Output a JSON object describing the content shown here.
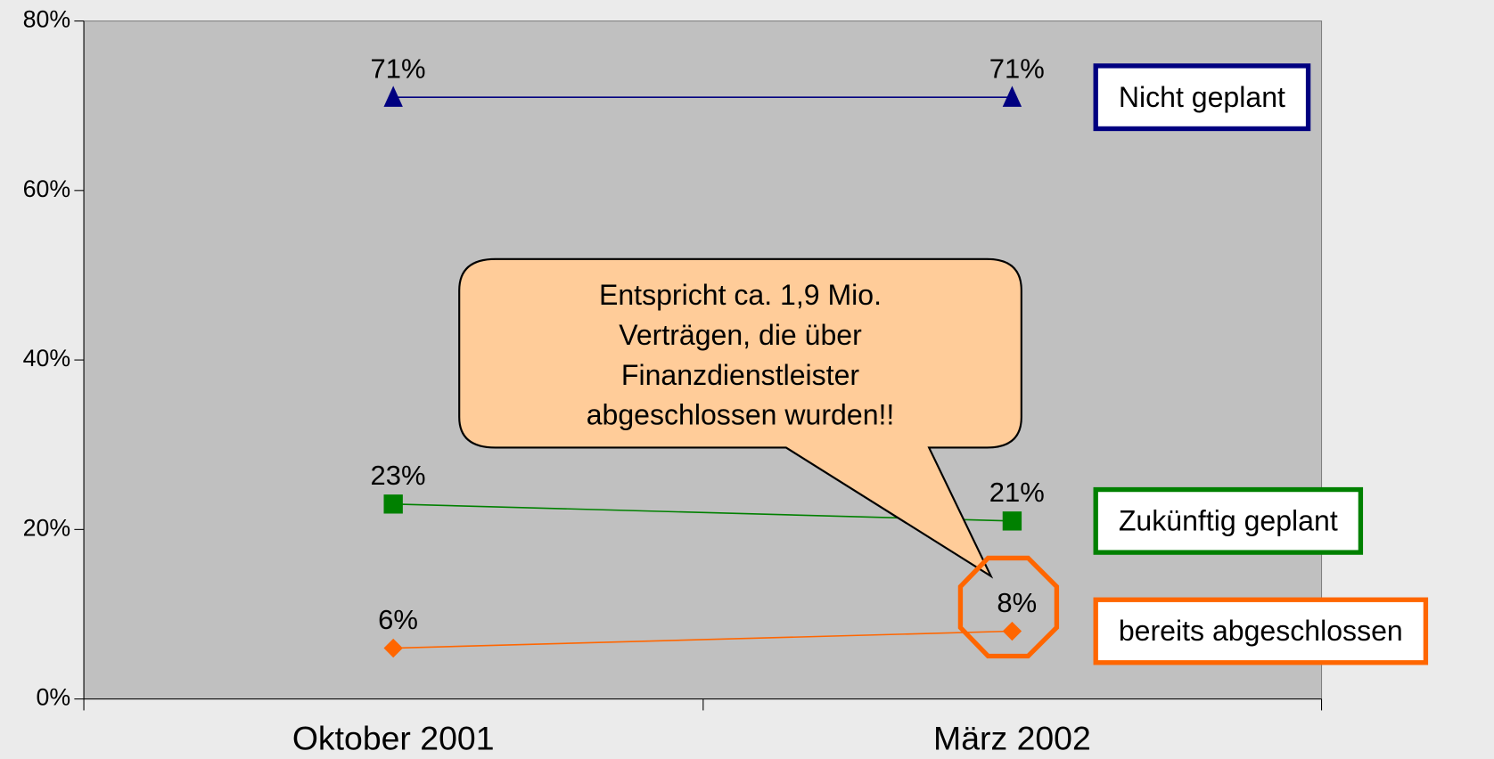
{
  "chart_data": {
    "type": "line",
    "categories": [
      "Oktober 2001",
      "März 2002"
    ],
    "series": [
      {
        "name": "Nicht geplant",
        "color": "#000080",
        "marker": "triangle",
        "values": [
          71,
          71
        ],
        "value_labels": [
          "71%",
          "71%"
        ]
      },
      {
        "name": "Zukünftig geplant",
        "color": "#008000",
        "marker": "square",
        "values": [
          23,
          21
        ],
        "value_labels": [
          "23%",
          "21%"
        ]
      },
      {
        "name": "bereits abgeschlossen",
        "color": "#ff6600",
        "marker": "diamond",
        "values": [
          6,
          8
        ],
        "value_labels": [
          "6%",
          "8%"
        ]
      }
    ],
    "ylim": [
      0,
      80
    ],
    "yticks": [
      {
        "value": 0,
        "label": "0%"
      },
      {
        "value": 20,
        "label": "20%"
      },
      {
        "value": 40,
        "label": "40%"
      },
      {
        "value": 60,
        "label": "60%"
      },
      {
        "value": 80,
        "label": "80%"
      }
    ],
    "annotation": [
      "Entspricht ca. 1,9 Mio.",
      "Verträgen, die über",
      "Finanzdienstleister",
      "abgeschlossen wurden!!"
    ]
  }
}
